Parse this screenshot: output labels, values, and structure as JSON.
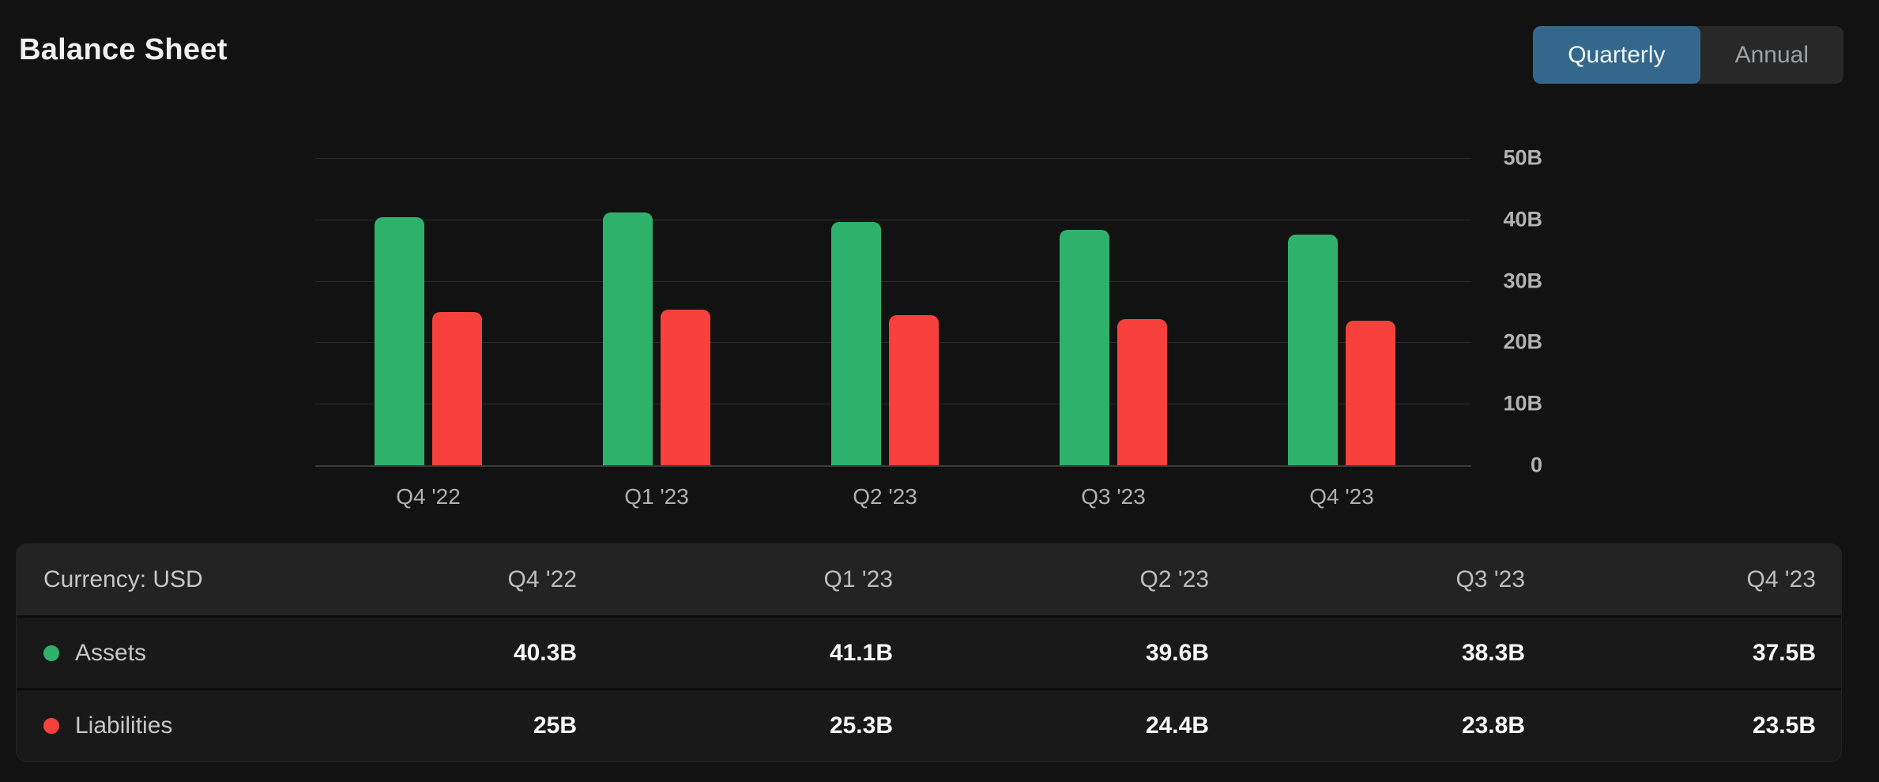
{
  "page": {
    "title": "Balance Sheet",
    "background": "#121212"
  },
  "toggle": {
    "options": [
      {
        "label": "Quarterly",
        "active": true
      },
      {
        "label": "Annual",
        "active": false
      }
    ],
    "active_color": "#33688c"
  },
  "chart_data": {
    "type": "bar",
    "title": "",
    "xlabel": "",
    "ylabel": "",
    "categories": [
      "Q4 '22",
      "Q1 '23",
      "Q2 '23",
      "Q3 '23",
      "Q4 '23"
    ],
    "series": [
      {
        "name": "Assets",
        "color": "#2eb26b",
        "values": [
          40.3,
          41.1,
          39.6,
          38.3,
          37.5
        ]
      },
      {
        "name": "Liabilities",
        "color": "#f8413c",
        "values": [
          25,
          25.3,
          24.4,
          23.8,
          23.5
        ]
      }
    ],
    "ylim": [
      0,
      50
    ],
    "yticks": [
      {
        "value": 50,
        "label": "50B"
      },
      {
        "value": 40,
        "label": "40B"
      },
      {
        "value": 30,
        "label": "30B"
      },
      {
        "value": 20,
        "label": "20B"
      },
      {
        "value": 10,
        "label": "10B"
      },
      {
        "value": 0,
        "label": "0"
      }
    ],
    "grid": true,
    "legend_position": "none",
    "unit": "USD billions"
  },
  "table": {
    "corner_label": "Currency: USD",
    "columns": [
      "Q4 '22",
      "Q1 '23",
      "Q2 '23",
      "Q3 '23",
      "Q4 '23"
    ],
    "rows": [
      {
        "label": "Assets",
        "dot_color": "#2eb26b",
        "values": [
          "40.3B",
          "41.1B",
          "39.6B",
          "38.3B",
          "37.5B"
        ]
      },
      {
        "label": "Liabilities",
        "dot_color": "#f8413c",
        "values": [
          "25B",
          "25.3B",
          "24.4B",
          "23.8B",
          "23.5B"
        ]
      }
    ]
  }
}
